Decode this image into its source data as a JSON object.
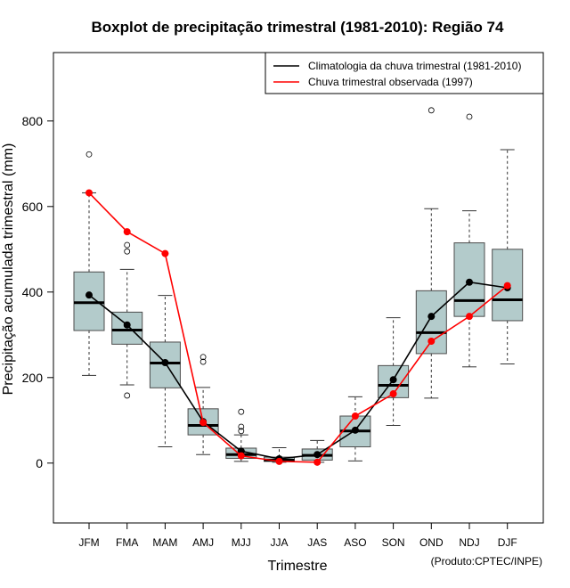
{
  "chart_data": {
    "type": "boxplot+line",
    "title": "Boxplot de precipitação trimestral (1981-2010): Região 74",
    "xlabel": "Trimestre",
    "ylabel": "Precipitação acumulada trimestral (mm)",
    "credit": "(Produto:CPTEC/INPE)",
    "ylim": [
      -140,
      960
    ],
    "yticks": [
      0,
      200,
      400,
      600,
      800
    ],
    "categories": [
      "JFM",
      "FMA",
      "MAM",
      "AMJ",
      "MJJ",
      "JJA",
      "JAS",
      "ASO",
      "SON",
      "OND",
      "NDJ",
      "DJF"
    ],
    "boxes": [
      {
        "min": 205,
        "q1": 310,
        "median": 375,
        "q3": 447,
        "max": 632,
        "outliers": [
          722
        ]
      },
      {
        "min": 183,
        "q1": 278,
        "median": 311,
        "q3": 353,
        "max": 453,
        "outliers": [
          158,
          495,
          510
        ]
      },
      {
        "min": 38,
        "q1": 176,
        "median": 234,
        "q3": 283,
        "max": 392,
        "outliers": []
      },
      {
        "min": 20,
        "q1": 66,
        "median": 88,
        "q3": 127,
        "max": 177,
        "outliers": [
          237,
          248
        ]
      },
      {
        "min": 4,
        "q1": 11,
        "median": 20,
        "q3": 35,
        "max": 66,
        "outliers": [
          75,
          85,
          120
        ]
      },
      {
        "min": 2,
        "q1": 4,
        "median": 7,
        "q3": 14,
        "max": 36,
        "outliers": []
      },
      {
        "min": 2,
        "q1": 7,
        "median": 18,
        "q3": 33,
        "max": 53,
        "outliers": []
      },
      {
        "min": 5,
        "q1": 38,
        "median": 75,
        "q3": 110,
        "max": 155,
        "outliers": []
      },
      {
        "min": 88,
        "q1": 153,
        "median": 182,
        "q3": 228,
        "max": 340,
        "outliers": []
      },
      {
        "min": 152,
        "q1": 256,
        "median": 305,
        "q3": 403,
        "max": 595,
        "outliers": [
          825
        ]
      },
      {
        "min": 225,
        "q1": 343,
        "median": 380,
        "q3": 515,
        "max": 590,
        "outliers": [
          810
        ]
      },
      {
        "min": 232,
        "q1": 333,
        "median": 382,
        "q3": 500,
        "max": 733,
        "outliers": []
      }
    ],
    "series": [
      {
        "name": "Climatologia da chuva trimestral (1981-2010)",
        "color": "#000000",
        "values": [
          393,
          323,
          235,
          97,
          28,
          10,
          20,
          77,
          195,
          343,
          423,
          410
        ]
      },
      {
        "name": "Chuva trimestral observada (1997)",
        "color": "#ff0000",
        "values": [
          632,
          541,
          490,
          95,
          17,
          4,
          2,
          110,
          162,
          285,
          343,
          415
        ]
      }
    ],
    "colors": {
      "box_fill": "#b3cbcb",
      "box_stroke": "#4d4d4d",
      "axis": "#000000"
    }
  }
}
